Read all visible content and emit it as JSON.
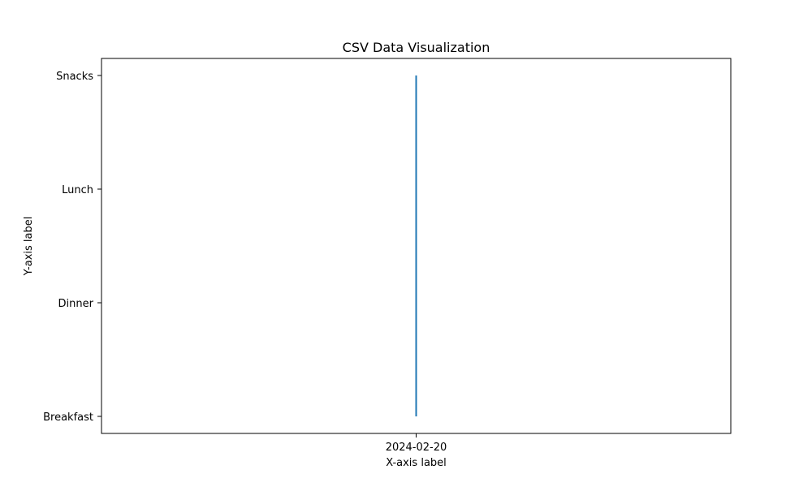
{
  "chart_data": {
    "type": "line",
    "title": "CSV Data Visualization",
    "xlabel": "X-axis label",
    "ylabel": "Y-axis label",
    "x_categories": [
      "2024-02-20"
    ],
    "y_categories": [
      "Breakfast",
      "Dinner",
      "Lunch",
      "Snacks"
    ],
    "series": [
      {
        "x": [
          "2024-02-20",
          "2024-02-20",
          "2024-02-20",
          "2024-02-20"
        ],
        "y": [
          "Breakfast",
          "Dinner",
          "Lunch",
          "Snacks"
        ]
      }
    ],
    "grid": false,
    "colors": {
      "series": "#1f77b4",
      "axes": "#000000",
      "background": "#ffffff"
    }
  }
}
